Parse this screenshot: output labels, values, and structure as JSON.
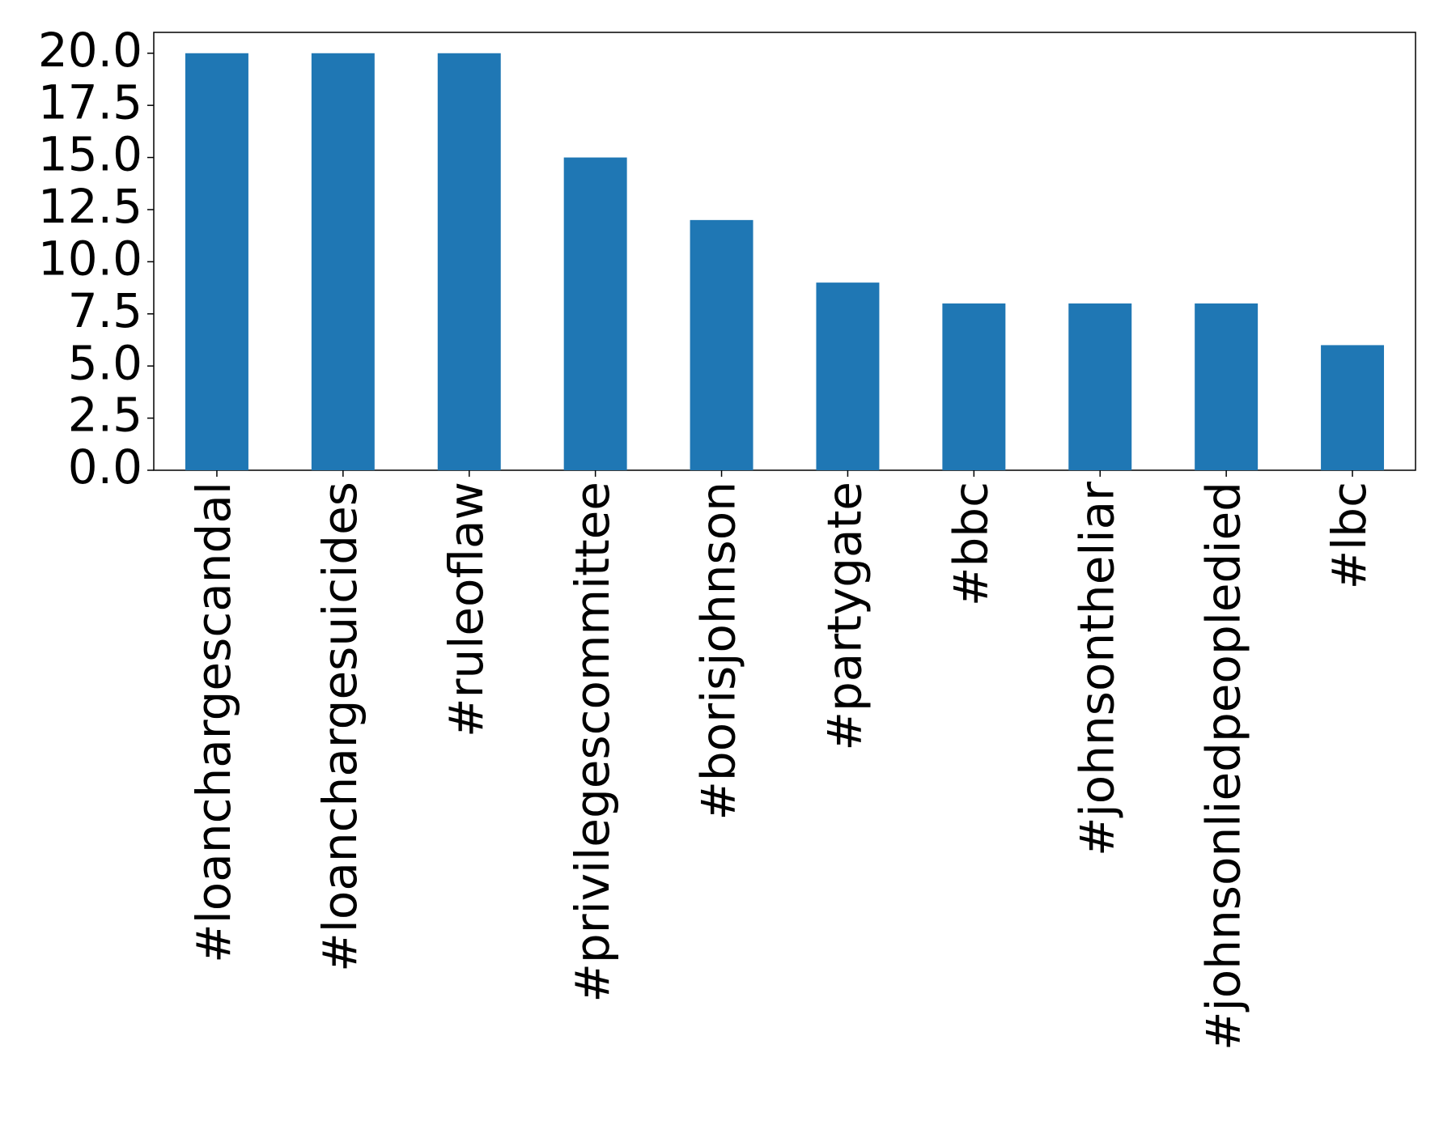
{
  "chart_data": {
    "type": "bar",
    "categories": [
      "#loanchargescandal",
      "#loanchargesuicides",
      "#ruleoflaw",
      "#privilegescommittee",
      "#borisjohnson",
      "#partygate",
      "#bbc",
      "#johnsontheliar",
      "#johnsonliedpeopledied",
      "#lbc"
    ],
    "values": [
      20,
      20,
      20,
      15,
      12,
      9,
      8,
      8,
      8,
      6
    ],
    "color": "#1f77b4",
    "ylim": [
      0,
      21
    ],
    "yticks": [
      {
        "value": 0,
        "label": "0.0"
      },
      {
        "value": 2.5,
        "label": "2.5"
      },
      {
        "value": 5,
        "label": "5.0"
      },
      {
        "value": 7.5,
        "label": "7.5"
      },
      {
        "value": 10,
        "label": "10.0"
      },
      {
        "value": 12.5,
        "label": "12.5"
      },
      {
        "value": 15,
        "label": "15.0"
      },
      {
        "value": 17.5,
        "label": "17.5"
      },
      {
        "value": 20,
        "label": "20.0"
      }
    ],
    "grid": false
  }
}
